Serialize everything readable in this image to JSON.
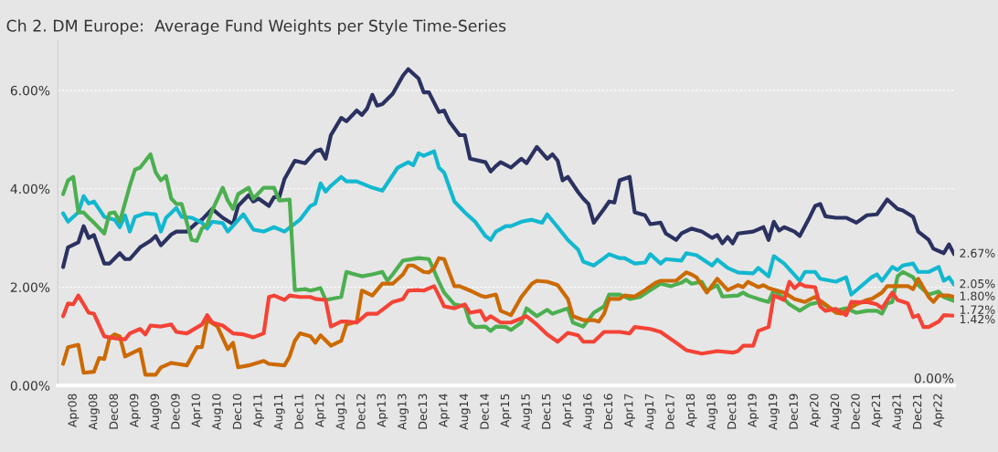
{
  "chart_data": {
    "type": "line",
    "title": "Ch 2. DM Europe:  Average Fund Weights per Style Time-Series",
    "xlim": [
      "2008-01",
      "2022-07"
    ],
    "xticks": [
      {
        "value": "2008-04",
        "label": "Apr08"
      },
      {
        "value": "2008-08",
        "label": "Aug08"
      },
      {
        "value": "2008-12",
        "label": "Dec08"
      },
      {
        "value": "2009-04",
        "label": "Apr09"
      },
      {
        "value": "2009-08",
        "label": "Aug09"
      },
      {
        "value": "2009-12",
        "label": "Dec09"
      },
      {
        "value": "2010-04",
        "label": "Apr10"
      },
      {
        "value": "2010-08",
        "label": "Aug10"
      },
      {
        "value": "2010-12",
        "label": "Dec10"
      },
      {
        "value": "2011-04",
        "label": "Apr11"
      },
      {
        "value": "2011-08",
        "label": "Aug11"
      },
      {
        "value": "2011-12",
        "label": "Dec11"
      },
      {
        "value": "2012-04",
        "label": "Apr12"
      },
      {
        "value": "2012-08",
        "label": "Aug12"
      },
      {
        "value": "2012-12",
        "label": "Dec12"
      },
      {
        "value": "2013-04",
        "label": "Apr13"
      },
      {
        "value": "2013-08",
        "label": "Aug13"
      },
      {
        "value": "2013-12",
        "label": "Dec13"
      },
      {
        "value": "2014-04",
        "label": "Apr14"
      },
      {
        "value": "2014-08",
        "label": "Aug14"
      },
      {
        "value": "2014-12",
        "label": "Dec14"
      },
      {
        "value": "2015-04",
        "label": "Apr15"
      },
      {
        "value": "2015-08",
        "label": "Aug15"
      },
      {
        "value": "2015-12",
        "label": "Dec15"
      },
      {
        "value": "2016-04",
        "label": "Apr16"
      },
      {
        "value": "2016-08",
        "label": "Aug16"
      },
      {
        "value": "2016-12",
        "label": "Dec16"
      },
      {
        "value": "2017-04",
        "label": "Apr17"
      },
      {
        "value": "2017-08",
        "label": "Aug17"
      },
      {
        "value": "2017-12",
        "label": "Dec17"
      },
      {
        "value": "2018-04",
        "label": "Apr18"
      },
      {
        "value": "2018-08",
        "label": "Aug18"
      },
      {
        "value": "2018-12",
        "label": "Dec18"
      },
      {
        "value": "2019-04",
        "label": "Apr19"
      },
      {
        "value": "2019-08",
        "label": "Aug19"
      },
      {
        "value": "2019-12",
        "label": "Dec19"
      },
      {
        "value": "2020-04",
        "label": "Apr20"
      },
      {
        "value": "2020-08",
        "label": "Aug20"
      },
      {
        "value": "2020-12",
        "label": "Dec20"
      },
      {
        "value": "2021-04",
        "label": "Apr21"
      },
      {
        "value": "2021-08",
        "label": "Aug21"
      },
      {
        "value": "2021-12",
        "label": "Dec21"
      },
      {
        "value": "2022-04",
        "label": "Apr22"
      }
    ],
    "ylim": [
      0,
      7
    ],
    "yticks": [
      {
        "value": 0,
        "label": "0.00%"
      },
      {
        "value": 2,
        "label": "2.00%"
      },
      {
        "value": 4,
        "label": "4.00%"
      },
      {
        "value": 6,
        "label": "6.00%"
      }
    ],
    "grid": "y",
    "legend": false,
    "marker": "none",
    "line_style": "solid",
    "series": [
      {
        "color": "#2b3160",
        "x": [
          "2008-02",
          "2008-03",
          "2008-05",
          "2008-06",
          "2008-07",
          "2008-08",
          "2008-10",
          "2008-11",
          "2009-01",
          "2009-02",
          "2009-03",
          "2009-05",
          "2009-07",
          "2009-08",
          "2009-09",
          "2009-11",
          "2009-12",
          "2010-02",
          "2010-04",
          "2010-05",
          "2010-07",
          "2010-09",
          "2010-11",
          "2010-12",
          "2011-02",
          "2011-03",
          "2011-04",
          "2011-06",
          "2011-07",
          "2011-08",
          "2011-09",
          "2011-11",
          "2012-01",
          "2012-03",
          "2012-04",
          "2012-05",
          "2012-06",
          "2012-08",
          "2012-09",
          "2012-11",
          "2012-12",
          "2013-01",
          "2013-02",
          "2013-03",
          "2013-04",
          "2013-06",
          "2013-08",
          "2013-09",
          "2013-11",
          "2013-12",
          "2014-01",
          "2014-03",
          "2014-04",
          "2014-05",
          "2014-07",
          "2014-08",
          "2014-09",
          "2014-12",
          "2015-01",
          "2015-02",
          "2015-03",
          "2015-05",
          "2015-07",
          "2015-08",
          "2015-10",
          "2015-12",
          "2016-01",
          "2016-02",
          "2016-03",
          "2016-04",
          "2016-06",
          "2016-07",
          "2016-08",
          "2016-09",
          "2016-11",
          "2016-12",
          "2017-01",
          "2017-02",
          "2017-04",
          "2017-05",
          "2017-07",
          "2017-08",
          "2017-10",
          "2017-11",
          "2018-01",
          "2018-02",
          "2018-04",
          "2018-06",
          "2018-08",
          "2018-09",
          "2018-10",
          "2018-11",
          "2018-12",
          "2019-01",
          "2019-04",
          "2019-06",
          "2019-07",
          "2019-08",
          "2019-09",
          "2019-10",
          "2019-12",
          "2020-01",
          "2020-03",
          "2020-04",
          "2020-05",
          "2020-06",
          "2020-08",
          "2020-10",
          "2020-12",
          "2021-02",
          "2021-04",
          "2021-06",
          "2021-08",
          "2021-09",
          "2021-11",
          "2021-12",
          "2022-02",
          "2022-03",
          "2022-05",
          "2022-06",
          "2022-07"
        ],
        "values": [
          2.41,
          2.81,
          2.91,
          3.24,
          3.0,
          3.06,
          2.48,
          2.48,
          2.69,
          2.57,
          2.57,
          2.81,
          2.94,
          3.04,
          2.85,
          3.07,
          3.13,
          3.13,
          3.31,
          3.37,
          3.59,
          3.41,
          3.28,
          3.65,
          3.87,
          3.74,
          3.8,
          3.65,
          3.83,
          3.83,
          4.2,
          4.57,
          4.52,
          4.76,
          4.8,
          4.61,
          5.09,
          5.44,
          5.37,
          5.59,
          5.5,
          5.63,
          5.91,
          5.69,
          5.72,
          5.93,
          6.3,
          6.43,
          6.24,
          5.96,
          5.96,
          5.56,
          5.59,
          5.37,
          5.09,
          5.09,
          4.61,
          4.54,
          4.35,
          4.46,
          4.54,
          4.43,
          4.61,
          4.52,
          4.85,
          4.61,
          4.7,
          4.57,
          4.17,
          4.24,
          3.93,
          3.8,
          3.69,
          3.31,
          3.59,
          3.74,
          3.72,
          4.17,
          4.24,
          3.52,
          3.46,
          3.28,
          3.31,
          3.09,
          2.96,
          3.09,
          3.19,
          3.13,
          3.0,
          3.06,
          2.89,
          3.02,
          2.89,
          3.09,
          3.13,
          3.22,
          2.96,
          3.33,
          3.15,
          3.22,
          3.13,
          3.04,
          3.43,
          3.65,
          3.69,
          3.44,
          3.41,
          3.41,
          3.31,
          3.46,
          3.48,
          3.78,
          3.59,
          3.56,
          3.43,
          3.13,
          2.96,
          2.78,
          2.69,
          2.87,
          2.67
        ]
      },
      {
        "color": "#12b8cf",
        "x": [
          "2008-02",
          "2008-03",
          "2008-05",
          "2008-06",
          "2008-07",
          "2008-08",
          "2008-10",
          "2008-12",
          "2009-01",
          "2009-02",
          "2009-03",
          "2009-04",
          "2009-06",
          "2009-08",
          "2009-09",
          "2009-10",
          "2009-12",
          "2010-01",
          "2010-03",
          "2010-05",
          "2010-06",
          "2010-07",
          "2010-09",
          "2010-10",
          "2011-01",
          "2011-03",
          "2011-05",
          "2011-07",
          "2011-09",
          "2011-12",
          "2012-02",
          "2012-03",
          "2012-04",
          "2012-05",
          "2012-06",
          "2012-08",
          "2012-09",
          "2012-11",
          "2013-02",
          "2013-04",
          "2013-07",
          "2013-09",
          "2013-10",
          "2013-11",
          "2013-12",
          "2014-02",
          "2014-03",
          "2014-04",
          "2014-06",
          "2014-08",
          "2014-10",
          "2014-12",
          "2015-01",
          "2015-02",
          "2015-04",
          "2015-05",
          "2015-07",
          "2015-09",
          "2015-11",
          "2015-12",
          "2016-02",
          "2016-04",
          "2016-06",
          "2016-07",
          "2016-09",
          "2016-11",
          "2016-12",
          "2017-02",
          "2017-03",
          "2017-05",
          "2017-07",
          "2017-08",
          "2017-10",
          "2017-11",
          "2018-02",
          "2018-03",
          "2018-05",
          "2018-08",
          "2018-09",
          "2018-11",
          "2019-01",
          "2019-04",
          "2019-05",
          "2019-07",
          "2019-08",
          "2019-10",
          "2020-01",
          "2020-02",
          "2020-04",
          "2020-05",
          "2020-08",
          "2020-10",
          "2020-11",
          "2020-12",
          "2021-03",
          "2021-04",
          "2021-05",
          "2021-07",
          "2021-08",
          "2021-09",
          "2021-11",
          "2021-12",
          "2022-02",
          "2022-04",
          "2022-05",
          "2022-06",
          "2022-07"
        ],
        "values": [
          3.5,
          3.33,
          3.52,
          3.85,
          3.7,
          3.74,
          3.43,
          3.37,
          3.22,
          3.46,
          3.13,
          3.43,
          3.5,
          3.48,
          3.13,
          3.41,
          3.61,
          3.43,
          3.41,
          3.31,
          3.19,
          3.33,
          3.3,
          3.13,
          3.48,
          3.17,
          3.13,
          3.22,
          3.13,
          3.37,
          3.65,
          3.7,
          4.11,
          3.94,
          4.06,
          4.24,
          4.15,
          4.15,
          4.02,
          3.96,
          4.43,
          4.54,
          4.48,
          4.72,
          4.67,
          4.76,
          4.43,
          4.33,
          3.74,
          3.52,
          3.33,
          3.04,
          2.96,
          3.13,
          3.24,
          3.24,
          3.33,
          3.37,
          3.31,
          3.48,
          3.22,
          2.96,
          2.76,
          2.52,
          2.44,
          2.59,
          2.67,
          2.59,
          2.59,
          2.48,
          2.5,
          2.67,
          2.48,
          2.57,
          2.54,
          2.69,
          2.65,
          2.44,
          2.56,
          2.39,
          2.3,
          2.28,
          2.39,
          2.22,
          2.63,
          2.48,
          2.13,
          2.31,
          2.31,
          2.17,
          2.11,
          2.2,
          1.85,
          1.94,
          2.2,
          2.26,
          2.13,
          2.41,
          2.35,
          2.44,
          2.48,
          2.31,
          2.31,
          2.41,
          2.13,
          2.2,
          2.05
        ]
      },
      {
        "color": "#4caf50",
        "x": [
          "2008-02",
          "2008-03",
          "2008-04",
          "2008-05",
          "2008-06",
          "2008-07",
          "2008-08",
          "2008-10",
          "2008-11",
          "2008-12",
          "2009-01",
          "2009-03",
          "2009-04",
          "2009-05",
          "2009-07",
          "2009-08",
          "2009-09",
          "2009-10",
          "2009-11",
          "2009-12",
          "2010-01",
          "2010-02",
          "2010-03",
          "2010-04",
          "2010-05",
          "2010-06",
          "2010-07",
          "2010-09",
          "2010-10",
          "2010-11",
          "2010-12",
          "2011-02",
          "2011-03",
          "2011-05",
          "2011-07",
          "2011-08",
          "2011-10",
          "2011-11",
          "2012-01",
          "2012-02",
          "2012-04",
          "2012-05",
          "2012-08",
          "2012-09",
          "2012-10",
          "2012-12",
          "2013-02",
          "2013-04",
          "2013-05",
          "2013-06",
          "2013-08",
          "2013-11",
          "2014-01",
          "2014-03",
          "2014-04",
          "2014-06",
          "2014-08",
          "2014-09",
          "2014-10",
          "2014-12",
          "2015-01",
          "2015-02",
          "2015-04",
          "2015-05",
          "2015-07",
          "2015-08",
          "2015-10",
          "2015-12",
          "2016-01",
          "2016-04",
          "2016-05",
          "2016-07",
          "2016-09",
          "2016-11",
          "2016-12",
          "2017-02",
          "2017-04",
          "2017-06",
          "2017-08",
          "2017-10",
          "2017-12",
          "2018-02",
          "2018-03",
          "2018-04",
          "2018-06",
          "2018-07",
          "2018-09",
          "2018-10",
          "2019-01",
          "2019-02",
          "2019-03",
          "2019-05",
          "2019-07",
          "2019-08",
          "2019-10",
          "2019-11",
          "2020-01",
          "2020-03",
          "2020-05",
          "2020-07",
          "2020-08",
          "2020-10",
          "2020-12",
          "2021-02",
          "2021-04",
          "2021-05",
          "2021-06",
          "2021-07",
          "2021-08",
          "2021-09",
          "2021-11",
          "2021-12",
          "2022-02",
          "2022-04",
          "2022-05",
          "2022-07"
        ],
        "values": [
          3.89,
          4.17,
          4.24,
          3.52,
          3.52,
          3.41,
          3.31,
          3.09,
          3.5,
          3.52,
          3.33,
          4.06,
          4.39,
          4.43,
          4.7,
          4.33,
          4.17,
          4.26,
          3.8,
          3.69,
          3.69,
          3.31,
          2.96,
          2.94,
          3.19,
          3.28,
          3.56,
          4.02,
          3.76,
          3.59,
          3.89,
          4.02,
          3.8,
          4.02,
          4.02,
          3.76,
          3.78,
          1.94,
          1.96,
          1.93,
          1.98,
          1.74,
          1.8,
          2.31,
          2.28,
          2.22,
          2.26,
          2.31,
          2.13,
          2.26,
          2.54,
          2.59,
          2.57,
          2.11,
          1.89,
          1.65,
          1.61,
          1.28,
          1.19,
          1.2,
          1.11,
          1.2,
          1.19,
          1.13,
          1.28,
          1.57,
          1.41,
          1.54,
          1.46,
          1.57,
          1.28,
          1.2,
          1.48,
          1.61,
          1.85,
          1.85,
          1.76,
          1.8,
          1.94,
          2.07,
          2.02,
          2.09,
          2.15,
          2.07,
          2.11,
          1.93,
          2.04,
          1.81,
          1.83,
          1.89,
          1.83,
          1.76,
          1.7,
          1.94,
          1.76,
          1.65,
          1.52,
          1.65,
          1.7,
          1.57,
          1.52,
          1.57,
          1.48,
          1.52,
          1.52,
          1.46,
          1.67,
          1.7,
          2.22,
          2.31,
          2.2,
          2.04,
          1.85,
          1.91,
          1.8,
          1.72
        ]
      },
      {
        "color": "#cc6a00",
        "x": [
          "2008-02",
          "2008-03",
          "2008-05",
          "2008-06",
          "2008-08",
          "2008-09",
          "2008-10",
          "2008-11",
          "2008-12",
          "2009-01",
          "2009-02",
          "2009-05",
          "2009-06",
          "2009-08",
          "2009-09",
          "2009-11",
          "2010-02",
          "2010-04",
          "2010-05",
          "2010-06",
          "2010-08",
          "2010-10",
          "2010-11",
          "2010-12",
          "2011-02",
          "2011-05",
          "2011-06",
          "2011-09",
          "2011-10",
          "2011-11",
          "2011-12",
          "2012-02",
          "2012-03",
          "2012-04",
          "2012-06",
          "2012-08",
          "2012-09",
          "2012-11",
          "2012-12",
          "2013-02",
          "2013-04",
          "2013-06",
          "2013-08",
          "2013-09",
          "2013-10",
          "2013-12",
          "2014-01",
          "2014-02",
          "2014-03",
          "2014-04",
          "2014-06",
          "2014-07",
          "2014-09",
          "2014-11",
          "2014-12",
          "2015-02",
          "2015-03",
          "2015-05",
          "2015-07",
          "2015-09",
          "2015-10",
          "2015-12",
          "2016-02",
          "2016-04",
          "2016-05",
          "2016-07",
          "2016-09",
          "2016-10",
          "2016-11",
          "2016-12",
          "2017-02",
          "2017-03",
          "2017-05",
          "2017-07",
          "2017-09",
          "2017-10",
          "2018-01",
          "2018-03",
          "2018-04",
          "2018-05",
          "2018-07",
          "2018-09",
          "2018-11",
          "2019-01",
          "2019-02",
          "2019-03",
          "2019-05",
          "2019-06",
          "2019-07",
          "2019-10",
          "2019-12",
          "2020-02",
          "2020-04",
          "2020-06",
          "2020-08",
          "2020-09",
          "2020-12",
          "2021-02",
          "2021-03",
          "2021-05",
          "2021-06",
          "2021-10",
          "2021-11",
          "2021-12",
          "2022-02",
          "2022-03",
          "2022-04",
          "2022-06",
          "2022-07"
        ],
        "values": [
          0.44,
          0.78,
          0.83,
          0.26,
          0.28,
          0.56,
          0.54,
          0.96,
          1.04,
          1.0,
          0.59,
          0.74,
          0.22,
          0.22,
          0.37,
          0.46,
          0.41,
          0.78,
          0.78,
          1.33,
          1.2,
          0.74,
          0.87,
          0.37,
          0.41,
          0.5,
          0.44,
          0.41,
          0.59,
          0.91,
          1.06,
          1.0,
          0.87,
          1.02,
          0.81,
          0.91,
          1.24,
          1.3,
          1.93,
          1.83,
          2.07,
          2.07,
          2.26,
          2.44,
          2.44,
          2.31,
          2.3,
          2.39,
          2.59,
          2.57,
          2.02,
          2.02,
          1.93,
          1.83,
          1.8,
          1.85,
          1.52,
          1.43,
          1.8,
          2.07,
          2.13,
          2.11,
          2.04,
          1.76,
          1.41,
          1.33,
          1.33,
          1.3,
          1.46,
          1.76,
          1.76,
          1.83,
          1.81,
          1.94,
          2.09,
          2.13,
          2.13,
          2.3,
          2.26,
          2.2,
          1.89,
          2.17,
          1.94,
          2.04,
          2.0,
          2.11,
          2.0,
          2.04,
          1.98,
          1.89,
          1.76,
          1.7,
          1.8,
          1.65,
          1.48,
          1.46,
          1.65,
          1.74,
          1.76,
          1.89,
          2.02,
          2.02,
          1.96,
          2.17,
          1.8,
          1.7,
          1.83,
          1.83,
          1.8
        ]
      },
      {
        "color": "#f44336",
        "x": [
          "2008-02",
          "2008-03",
          "2008-04",
          "2008-05",
          "2008-07",
          "2008-08",
          "2008-10",
          "2008-12",
          "2009-02",
          "2009-03",
          "2009-05",
          "2009-06",
          "2009-07",
          "2009-09",
          "2009-11",
          "2009-12",
          "2010-02",
          "2010-05",
          "2010-06",
          "2010-07",
          "2010-09",
          "2010-11",
          "2011-01",
          "2011-03",
          "2011-05",
          "2011-06",
          "2011-07",
          "2011-09",
          "2011-10",
          "2011-12",
          "2012-02",
          "2012-03",
          "2012-05",
          "2012-06",
          "2012-08",
          "2012-09",
          "2012-11",
          "2013-01",
          "2013-03",
          "2013-06",
          "2013-08",
          "2013-09",
          "2013-11",
          "2013-12",
          "2014-02",
          "2014-03",
          "2014-04",
          "2014-06",
          "2014-08",
          "2014-09",
          "2014-11",
          "2014-12",
          "2015-01",
          "2015-03",
          "2015-05",
          "2015-08",
          "2015-10",
          "2015-12",
          "2016-02",
          "2016-04",
          "2016-06",
          "2016-07",
          "2016-09",
          "2016-11",
          "2016-12",
          "2017-02",
          "2017-04",
          "2017-05",
          "2017-08",
          "2017-10",
          "2018-01",
          "2018-03",
          "2018-06",
          "2018-09",
          "2018-12",
          "2019-01",
          "2019-02",
          "2019-04",
          "2019-05",
          "2019-07",
          "2019-08",
          "2019-10",
          "2019-11",
          "2019-12",
          "2020-01",
          "2020-02",
          "2020-04",
          "2020-05",
          "2020-06",
          "2020-08",
          "2020-10",
          "2020-11",
          "2021-01",
          "2021-02",
          "2021-04",
          "2021-05",
          "2021-07",
          "2021-08",
          "2021-10",
          "2021-11",
          "2021-12",
          "2022-01",
          "2022-02",
          "2022-04",
          "2022-05",
          "2022-07"
        ],
        "values": [
          1.41,
          1.67,
          1.65,
          1.83,
          1.48,
          1.46,
          1.0,
          0.96,
          0.94,
          1.06,
          1.15,
          1.04,
          1.22,
          1.2,
          1.24,
          1.09,
          1.06,
          1.24,
          1.43,
          1.28,
          1.22,
          1.06,
          1.04,
          0.98,
          1.06,
          1.8,
          1.83,
          1.74,
          1.83,
          1.8,
          1.8,
          1.76,
          1.74,
          1.2,
          1.3,
          1.3,
          1.28,
          1.46,
          1.46,
          1.7,
          1.76,
          1.93,
          1.94,
          1.93,
          2.02,
          1.83,
          1.61,
          1.57,
          1.65,
          1.48,
          1.52,
          1.33,
          1.41,
          1.28,
          1.28,
          1.41,
          1.24,
          1.04,
          0.89,
          1.07,
          1.02,
          0.89,
          0.89,
          1.09,
          1.09,
          1.09,
          1.06,
          1.19,
          1.15,
          1.09,
          0.87,
          0.72,
          0.65,
          0.7,
          0.67,
          0.7,
          0.81,
          0.81,
          1.11,
          1.19,
          1.83,
          1.74,
          2.11,
          1.98,
          2.07,
          2.02,
          2.0,
          1.61,
          1.52,
          1.56,
          1.43,
          1.7,
          1.69,
          1.7,
          1.65,
          1.57,
          1.89,
          1.74,
          1.67,
          1.39,
          1.43,
          1.19,
          1.19,
          1.3,
          1.43,
          1.42
        ]
      }
    ],
    "annotations": [
      {
        "text": "2.67%",
        "x": "2022-07",
        "y": 2.67
      },
      {
        "text": "2.05%",
        "x": "2022-07",
        "y": 2.05
      },
      {
        "text": "1.80%",
        "x": "2022-07",
        "y": 1.8
      },
      {
        "text": "1.72%",
        "x": "2022-07",
        "y": 1.72
      },
      {
        "text": "1.42%",
        "x": "2022-07",
        "y": 1.42
      },
      "0.00%"
    ]
  }
}
